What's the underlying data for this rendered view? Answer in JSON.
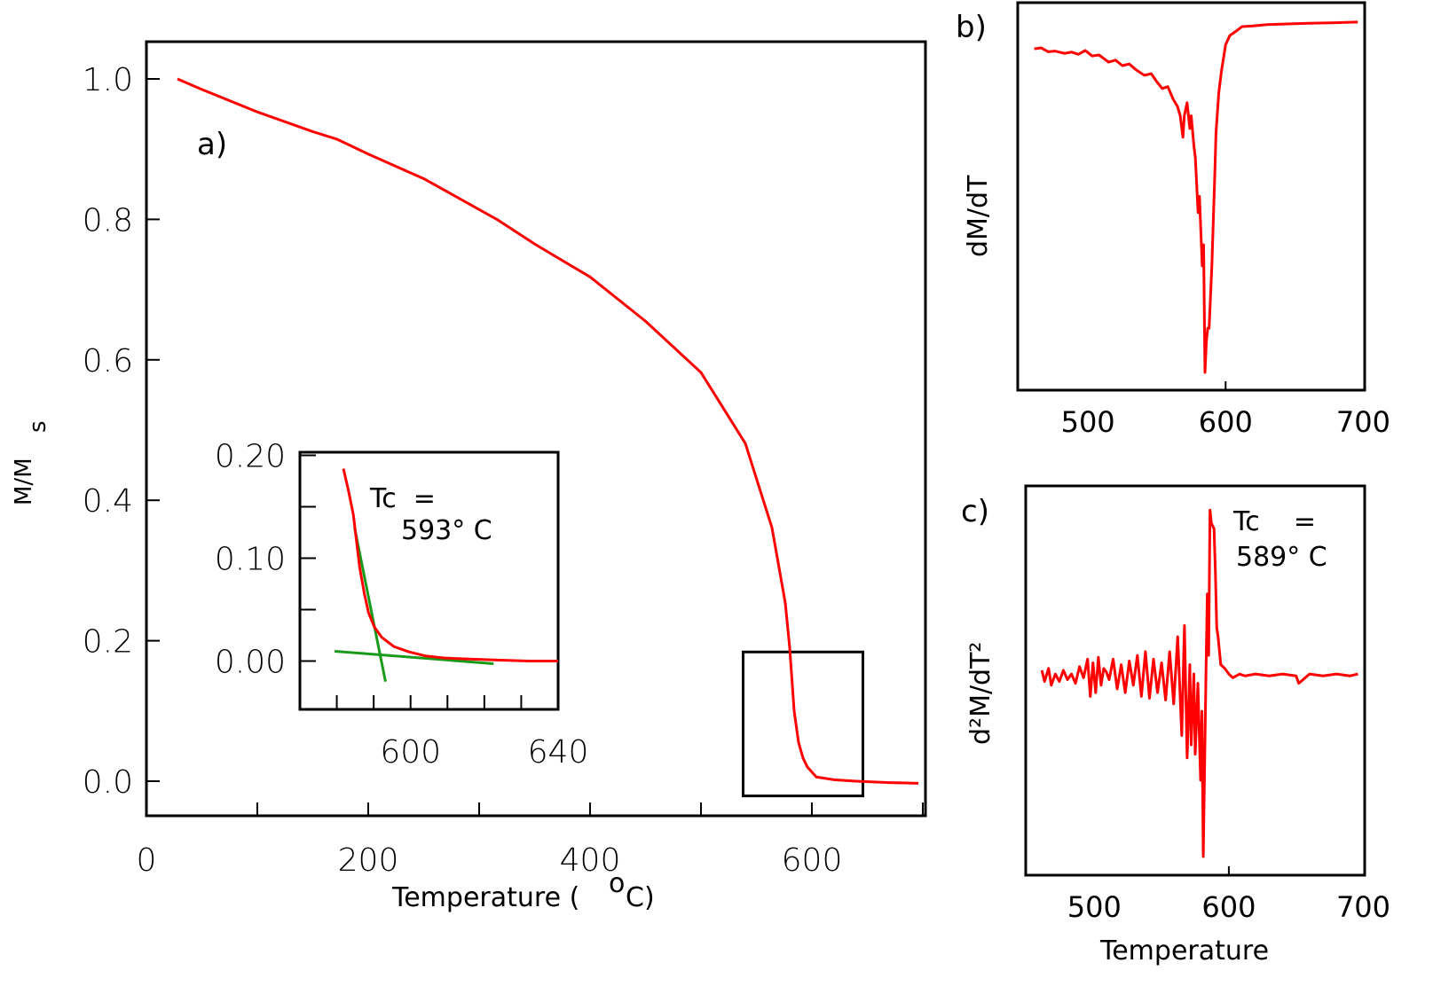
{
  "colors": {
    "curve": "#ff0000",
    "tangent": "#1a9a1a",
    "axes": "#000000"
  },
  "chart_data": [
    {
      "panel": "a)",
      "type": "line",
      "xlabel": "Temperature (",
      "xlabel_sup": "o",
      "xlabel_end": "C)",
      "ylabel": "M/M",
      "ylabel_sub": "s",
      "xlim": [
        0,
        700
      ],
      "ylim": [
        -0.05,
        1.05
      ],
      "xticks": [
        0,
        100,
        200,
        300,
        400,
        500,
        600,
        700
      ],
      "xticklabels": [
        "0",
        "200",
        "400",
        "600"
      ],
      "xticklabel_values": [
        0,
        200,
        400,
        600
      ],
      "yticks": [
        0,
        0.2,
        0.4,
        0.6,
        0.8,
        1.0
      ],
      "yticklabels": [
        "0.0",
        "0.2",
        "0.4",
        "0.6",
        "0.8",
        "1.0"
      ],
      "grid": false,
      "series": [
        {
          "x": [
            28,
            50,
            100,
            150,
            172,
            200,
            250,
            300,
            316,
            350,
            400,
            450,
            500,
            540,
            564,
            576,
            580,
            584,
            588,
            592,
            596,
            604,
            620,
            640,
            670,
            696
          ],
          "y": [
            1.0,
            0.985,
            0.953,
            0.925,
            0.914,
            0.893,
            0.858,
            0.814,
            0.8,
            0.765,
            0.718,
            0.655,
            0.582,
            0.481,
            0.361,
            0.254,
            0.19,
            0.1,
            0.055,
            0.033,
            0.02,
            0.006,
            0.002,
            0.0,
            -0.002,
            -0.003
          ]
        }
      ],
      "highlight_box": {
        "x": [
          538,
          646
        ],
        "y": [
          -0.021,
          0.184
        ]
      }
    },
    {
      "panel": "inset",
      "type": "line",
      "xlim": [
        570,
        640
      ],
      "ylim": [
        -0.047,
        0.203
      ],
      "xticks": [
        580,
        590,
        600,
        610,
        620,
        630,
        640
      ],
      "xticklabels": [
        "600",
        "640"
      ],
      "xticklabel_values": [
        600,
        640
      ],
      "yticks": [
        0,
        0.05,
        0.1,
        0.15,
        0.2
      ],
      "yticklabels": [
        "0.00",
        "0.10",
        "0.20"
      ],
      "yticklabel_values": [
        0,
        0.1,
        0.2
      ],
      "series": [
        {
          "x": [
            581.8,
            583.2,
            584.5,
            586.2,
            587.5,
            588.6,
            590.2,
            592.2,
            595.5,
            599.5,
            604,
            609,
            615,
            623.5,
            632,
            640
          ],
          "y": [
            0.187,
            0.165,
            0.142,
            0.091,
            0.065,
            0.047,
            0.033,
            0.023,
            0.014,
            0.009,
            0.005,
            0.003,
            0.002,
            0.001,
            0.0,
            0.0
          ]
        }
      ],
      "tangents": [
        {
          "x": [
            584.8,
            593.2
          ],
          "y": [
            0.13,
            -0.02
          ]
        },
        {
          "x": [
            579.4,
            622.5
          ],
          "y": [
            0.0095,
            -0.0026
          ]
        }
      ],
      "annotation": {
        "line1": "Tc  =",
        "line2": "593° C"
      }
    },
    {
      "panel": "b)",
      "type": "line",
      "ylabel": "dM/dT",
      "xlim": [
        449,
        701
      ],
      "ylim": [
        -1.05,
        0.15
      ],
      "xticks": [
        600
      ],
      "xticklabels": [
        "500",
        "600",
        "700"
      ],
      "xticklabel_values": [
        500,
        600,
        700
      ],
      "series": [
        {
          "x": [
            461,
            466,
            471,
            476,
            483,
            488,
            493,
            498,
            503,
            508,
            515,
            520,
            525,
            530,
            535,
            541,
            546,
            550,
            554,
            558,
            562,
            565,
            567,
            569,
            570,
            572,
            574,
            575,
            577,
            578,
            580,
            581,
            583,
            584,
            585,
            586,
            587,
            588,
            590,
            592,
            593,
            595,
            597,
            600,
            603,
            607,
            612,
            620,
            630,
            645,
            660,
            680,
            696
          ],
          "y": [
            0.007,
            0.01,
            -0.002,
            0.0,
            -0.007,
            -0.003,
            -0.01,
            0.002,
            -0.015,
            -0.012,
            -0.034,
            -0.028,
            -0.045,
            -0.04,
            -0.058,
            -0.075,
            -0.07,
            -0.095,
            -0.116,
            -0.11,
            -0.15,
            -0.171,
            -0.2,
            -0.267,
            -0.2,
            -0.16,
            -0.24,
            -0.2,
            -0.295,
            -0.33,
            -0.5,
            -0.45,
            -0.665,
            -0.6,
            -0.995,
            -0.9,
            -0.858,
            -0.858,
            -0.665,
            -0.4,
            -0.254,
            -0.13,
            -0.061,
            0.02,
            0.048,
            0.06,
            0.076,
            0.078,
            0.082,
            0.084,
            0.086,
            0.088,
            0.09
          ]
        }
      ]
    },
    {
      "panel": "c)",
      "type": "line",
      "ylabel": "d²M/dT²",
      "xlabel": "Temperature",
      "xlim": [
        449,
        701
      ],
      "ylim": [
        -1.08,
        1.01
      ],
      "xticks": [
        600
      ],
      "xticklabels": [
        "500",
        "600",
        "700"
      ],
      "xticklabel_values": [
        500,
        600,
        700
      ],
      "series": [
        {
          "x": [
            461,
            463,
            466,
            468,
            471,
            474,
            477,
            480,
            483,
            486,
            489,
            492,
            495,
            497,
            499,
            501,
            503,
            505,
            507,
            509,
            511,
            514,
            517,
            520,
            523,
            526,
            529,
            532,
            535,
            538,
            541,
            544,
            547,
            550,
            553,
            556,
            559,
            562,
            565,
            567,
            569,
            571,
            572,
            574,
            575,
            577,
            579,
            580,
            581,
            583,
            584,
            585,
            586,
            587,
            589,
            590,
            591,
            592,
            594,
            597,
            600,
            603,
            608,
            612,
            620,
            630,
            640,
            650,
            652,
            660,
            670,
            680,
            690,
            696
          ],
          "y": [
            0.02,
            -0.04,
            0.03,
            -0.06,
            0.0,
            -0.04,
            0.02,
            -0.03,
            0.0,
            -0.05,
            0.04,
            -0.02,
            0.08,
            -0.12,
            0.06,
            -0.1,
            0.09,
            -0.06,
            0.03,
            0.01,
            -0.03,
            0.08,
            -0.08,
            0.05,
            -0.1,
            0.07,
            -0.06,
            0.1,
            -0.12,
            0.12,
            -0.13,
            0.08,
            -0.1,
            0.06,
            -0.14,
            0.12,
            -0.16,
            0.2,
            -0.33,
            0.26,
            -0.45,
            0.05,
            -0.38,
            0.0,
            -0.43,
            -0.05,
            -0.57,
            -0.2,
            -0.98,
            0.0,
            0.43,
            0.1,
            0.88,
            0.81,
            0.78,
            0.55,
            0.25,
            0.2,
            0.05,
            0.03,
            0.0,
            -0.02,
            0.0,
            -0.01,
            0.0,
            -0.01,
            0.0,
            -0.01,
            -0.05,
            0.0,
            -0.01,
            0.0,
            -0.01,
            0.0
          ]
        }
      ],
      "annotation": {
        "line1": "Tc    =",
        "line2": "589° C"
      }
    }
  ]
}
